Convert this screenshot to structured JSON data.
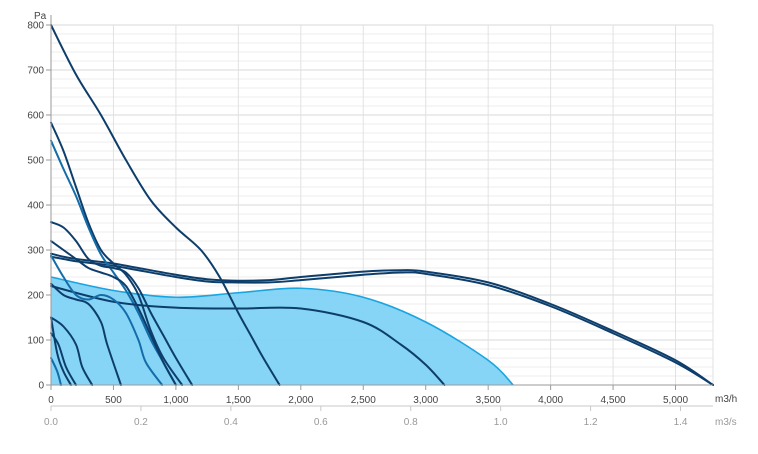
{
  "chart_data": {
    "type": "line",
    "y_unit": "Pa",
    "x_unit": "m3/h",
    "x2_unit": "m3/s",
    "xlim": [
      0,
      5300
    ],
    "ylim": [
      0,
      800
    ],
    "x2lim": [
      0,
      1.4722
    ],
    "x_ticks": [
      0,
      500,
      1000,
      1500,
      2000,
      2500,
      3000,
      3500,
      4000,
      4500,
      5000
    ],
    "x_tick_labels": [
      "0",
      "500",
      "1,000",
      "1,500",
      "2,000",
      "2,500",
      "3,000",
      "3,500",
      "4,000",
      "4,500",
      "5,000"
    ],
    "x2_ticks": [
      0,
      0.2,
      0.4,
      0.6,
      0.8,
      1.0,
      1.2,
      1.4
    ],
    "x2_tick_labels": [
      "0.0",
      "0.2",
      "0.4",
      "0.6",
      "0.8",
      "1.0",
      "1.2",
      "1.4"
    ],
    "y_ticks": [
      0,
      100,
      200,
      300,
      400,
      500,
      600,
      700,
      800
    ],
    "y_tick_labels": [
      "0",
      "100",
      "200",
      "300",
      "400",
      "500",
      "600",
      "700",
      "800"
    ],
    "grid": true,
    "minor_y_step": 20,
    "legend": "none",
    "colors": {
      "fill_area": "#7fd3f5",
      "fill_edge": "#1aa4e0",
      "curve_dark": "#0d3e6b",
      "curve_mid": "#146ca8",
      "grid": "#dddddd"
    },
    "shaded_region": {
      "x": [
        0,
        500,
        1000,
        1500,
        2000,
        2500,
        3000,
        3500,
        3700
      ],
      "y": [
        240,
        210,
        195,
        205,
        215,
        195,
        140,
        55,
        0
      ]
    },
    "series": [
      {
        "x": [
          0,
          100,
          200,
          350,
          500,
          700,
          1000,
          1250,
          1450,
          1750,
          2000,
          2500,
          2800,
          3000,
          3500,
          4000,
          4500,
          5000,
          5300
        ],
        "y": [
          292,
          285,
          280,
          275,
          270,
          260,
          245,
          235,
          232,
          233,
          240,
          252,
          255,
          252,
          228,
          180,
          120,
          55,
          0
        ],
        "color": "curve_dark"
      },
      {
        "x": [
          0,
          100,
          200,
          350,
          500,
          700,
          1000,
          1250,
          1450,
          1750,
          2000,
          2500,
          2800,
          3000,
          3500,
          4000,
          4500,
          5000,
          5300
        ],
        "y": [
          285,
          280,
          275,
          270,
          265,
          255,
          240,
          230,
          228,
          228,
          233,
          245,
          250,
          247,
          222,
          175,
          115,
          50,
          0
        ],
        "color": "curve_dark"
      },
      {
        "x": [
          0,
          200,
          400,
          600,
          800,
          1000,
          1200,
          1350,
          1500,
          1600,
          1700,
          1830
        ],
        "y": [
          800,
          690,
          600,
          500,
          410,
          350,
          300,
          240,
          160,
          110,
          60,
          0
        ],
        "color": "curve_dark"
      },
      {
        "x": [
          0,
          100,
          200,
          300,
          400,
          500,
          600,
          700,
          800,
          900,
          1050
        ],
        "y": [
          583,
          520,
          440,
          360,
          300,
          270,
          245,
          200,
          120,
          60,
          0
        ],
        "color": "curve_dark"
      },
      {
        "x": [
          0,
          100,
          200,
          300,
          400,
          500,
          600,
          700,
          800,
          900,
          1000
        ],
        "y": [
          543,
          480,
          420,
          350,
          290,
          250,
          210,
          160,
          100,
          50,
          0
        ],
        "color": "curve_mid"
      },
      {
        "x": [
          0,
          100,
          200,
          300,
          400,
          500,
          600,
          700,
          800,
          900,
          1000,
          1130
        ],
        "y": [
          362,
          350,
          320,
          280,
          265,
          260,
          250,
          215,
          160,
          110,
          60,
          0
        ],
        "color": "curve_dark"
      },
      {
        "x": [
          0,
          100,
          200,
          300,
          400,
          500,
          600,
          700,
          800,
          900,
          1000
        ],
        "y": [
          320,
          300,
          280,
          260,
          250,
          240,
          220,
          170,
          110,
          50,
          0
        ],
        "color": "curve_dark"
      },
      {
        "x": [
          0,
          500,
          1000,
          1500,
          2000,
          2500,
          2800,
          3000,
          3150
        ],
        "y": [
          220,
          185,
          172,
          170,
          170,
          140,
          90,
          45,
          0
        ],
        "color": "curve_dark"
      },
      {
        "x": [
          0,
          100,
          200,
          300,
          400,
          500,
          600,
          700,
          760,
          890
        ],
        "y": [
          288,
          240,
          200,
          190,
          200,
          190,
          160,
          100,
          50,
          0
        ],
        "color": "curve_mid"
      },
      {
        "x": [
          0,
          100,
          200,
          300,
          400,
          450,
          560
        ],
        "y": [
          225,
          200,
          190,
          180,
          140,
          90,
          0
        ],
        "color": "curve_dark"
      },
      {
        "x": [
          0,
          100,
          200,
          250,
          330
        ],
        "y": [
          150,
          130,
          90,
          40,
          0
        ],
        "color": "curve_dark"
      },
      {
        "x": [
          0,
          60,
          120,
          200
        ],
        "y": [
          115,
          90,
          40,
          0
        ],
        "color": "curve_dark"
      },
      {
        "x": [
          0,
          50,
          100,
          160
        ],
        "y": [
          150,
          70,
          30,
          0
        ],
        "color": "curve_dark"
      },
      {
        "x": [
          0,
          50,
          80
        ],
        "y": [
          60,
          30,
          0
        ],
        "color": "curve_mid"
      }
    ]
  }
}
